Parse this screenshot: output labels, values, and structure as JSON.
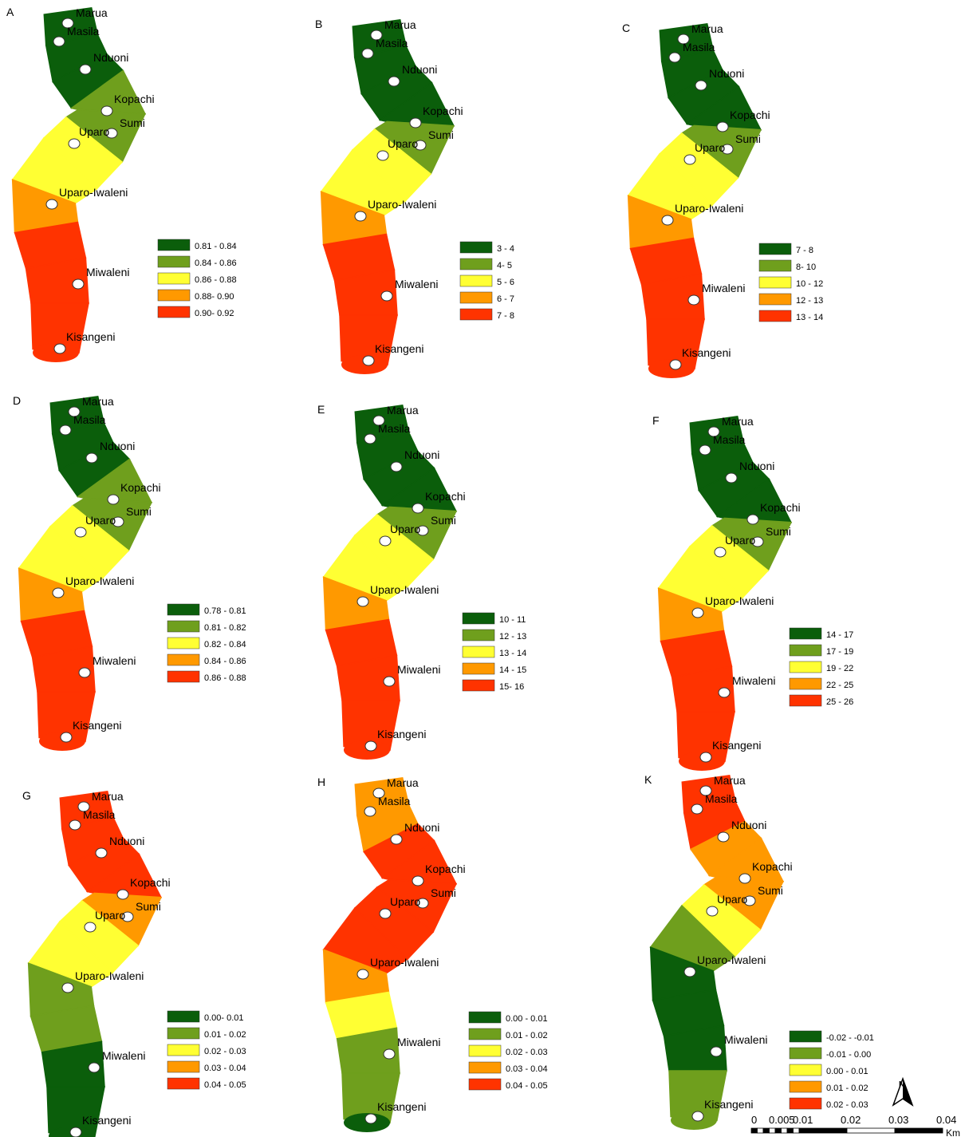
{
  "colors": {
    "dark_green": "#0b5e0b",
    "light_green": "#6f9f1d",
    "yellow": "#ffff33",
    "orange": "#ff9900",
    "red": "#ff3300"
  },
  "villages": [
    "Marua",
    "Masila",
    "Nduoni",
    "Kopachi",
    "Sumi",
    "Uparo",
    "Uparo-Iwaleni",
    "Miwaleni",
    "Kisangeni"
  ],
  "panels": [
    {
      "letter": "A",
      "zones": [
        0,
        0,
        0,
        1,
        1,
        2,
        2,
        3,
        4,
        4,
        4,
        4
      ],
      "legend": [
        "0.81 - 0.84",
        "0.84 - 0.86",
        "0.86 - 0.88",
        "0.88- 0.90",
        "0.90- 0.92"
      ]
    },
    {
      "letter": "B",
      "zones": [
        0,
        0,
        0,
        0,
        1,
        2,
        2,
        3,
        4,
        4,
        4,
        4
      ],
      "legend": [
        "3 - 4",
        "4- 5",
        "5 - 6",
        "6 - 7",
        "7 - 8"
      ]
    },
    {
      "letter": "C",
      "zones": [
        0,
        0,
        0,
        0,
        1,
        2,
        2,
        3,
        4,
        4,
        4,
        4
      ],
      "legend": [
        "7 - 8",
        "8- 10",
        "10 - 12",
        "12 - 13",
        "13 - 14"
      ]
    },
    {
      "letter": "D",
      "zones": [
        0,
        0,
        0,
        1,
        1,
        2,
        2,
        3,
        4,
        4,
        4,
        4
      ],
      "legend": [
        "0.78 - 0.81",
        "0.81 - 0.82",
        "0.82 - 0.84",
        "0.84 - 0.86",
        "0.86 - 0.88"
      ]
    },
    {
      "letter": "E",
      "zones": [
        0,
        0,
        0,
        0,
        1,
        2,
        2,
        3,
        4,
        4,
        4,
        4
      ],
      "legend": [
        "10 - 11",
        "12 - 13",
        "13 - 14",
        "14 - 15",
        "15- 16"
      ]
    },
    {
      "letter": "F",
      "zones": [
        0,
        0,
        0,
        0,
        1,
        2,
        2,
        3,
        4,
        4,
        4,
        4
      ],
      "legend": [
        "14 - 17",
        "17 - 19",
        "19 - 22",
        "22 - 25",
        "25 - 26"
      ]
    },
    {
      "letter": "G",
      "zones": [
        4,
        4,
        4,
        4,
        3,
        2,
        2,
        1,
        1,
        0,
        0,
        0
      ],
      "legend": [
        "0.00- 0.01",
        "0.01 - 0.02",
        "0.02 - 0.03",
        "0.03 - 0.04",
        "0.04 - 0.05"
      ]
    },
    {
      "letter": "H",
      "zones": [
        3,
        3,
        4,
        4,
        4,
        4,
        4,
        3,
        2,
        1,
        1,
        0
      ],
      "legend": [
        "0.00 - 0.01",
        "0.01 - 0.02",
        "0.02 - 0.03",
        "0.03 - 0.04",
        "0.04 - 0.05"
      ]
    },
    {
      "letter": "K",
      "zones": [
        4,
        4,
        3,
        3,
        3,
        2,
        1,
        0,
        0,
        0,
        1,
        1
      ],
      "legend": [
        "-0.02 - -0.01",
        "-0.01 - 0.00",
        "0.00 - 0.01",
        "0.01 - 0.02",
        "0.02 - 0.03"
      ]
    }
  ],
  "north_arrow": {
    "label": "N"
  },
  "scale_bar": {
    "ticks": [
      "0",
      "0.005",
      "0.01",
      "0.02",
      "0.03",
      "0.04"
    ],
    "unit": "Km"
  }
}
